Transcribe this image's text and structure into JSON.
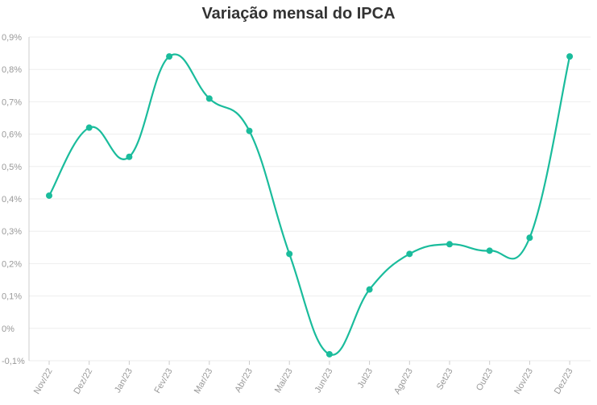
{
  "chart_data": {
    "type": "line",
    "title": "Variação mensal do IPCA",
    "xlabel": "",
    "ylabel": "",
    "categories": [
      "Nov/22",
      "Dez/22",
      "Jan/23",
      "Fev/23",
      "Mar/23",
      "Abr/23",
      "Mai/23",
      "Jun/23",
      "Jul23",
      "Ago/23",
      "Set23",
      "Out23",
      "Nov/23",
      "Dez/23"
    ],
    "series": [
      {
        "values": [
          0.41,
          0.62,
          0.53,
          0.84,
          0.71,
          0.61,
          0.23,
          -0.08,
          0.12,
          0.23,
          0.26,
          0.24,
          0.28,
          0.84
        ]
      }
    ],
    "ylim": [
      -0.1,
      0.9
    ],
    "yticks": [
      -0.1,
      0,
      0.1,
      0.2,
      0.3,
      0.4,
      0.5,
      0.6,
      0.7,
      0.8,
      0.9
    ],
    "ytick_labels": [
      "-0,1%",
      "0%",
      "0,1%",
      "0,2%",
      "0,3%",
      "0,4%",
      "0,5%",
      "0,6%",
      "0,7%",
      "0,8%",
      "0,9%"
    ],
    "grid": true,
    "colors": {
      "line": "#1ABC9C",
      "grid": "#eeeeee",
      "tick": "#999999"
    }
  }
}
